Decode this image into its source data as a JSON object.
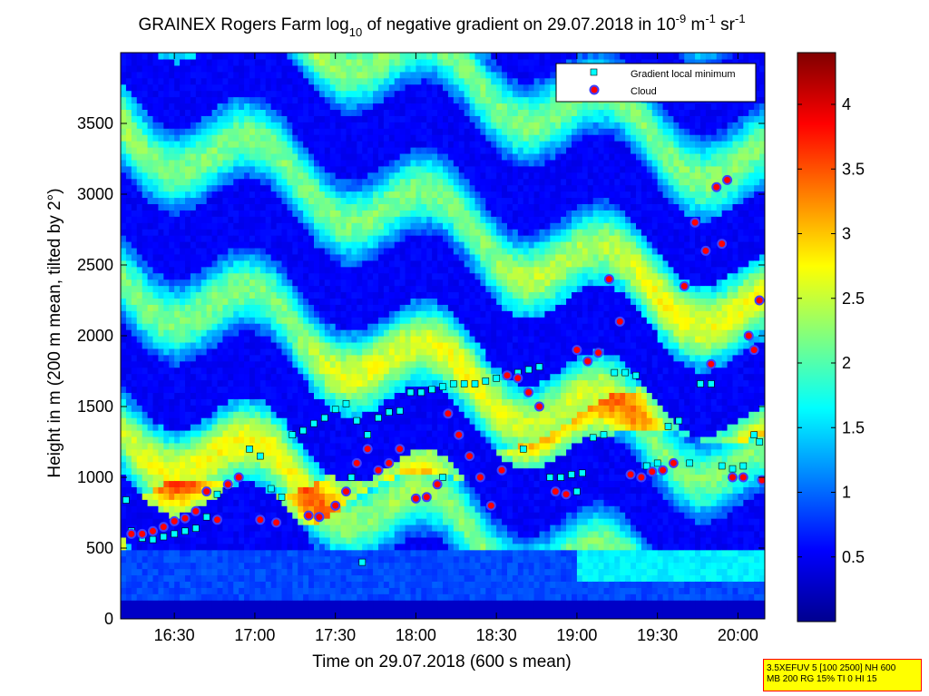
{
  "figure": {
    "title": {
      "main": "GRAINEX Rogers Farm log",
      "sub": "10",
      "mid": " of negative gradient on 29.07.2018 in 10",
      "exp1": "-9",
      "unit1": " m",
      "exp2": "-1",
      "unit2": " sr",
      "exp3": "-1"
    },
    "xlabel": "Time on 29.07.2018 (600 s mean)",
    "ylabel": "Height in m (200 m mean, tilted by 2°)",
    "legend": {
      "min_label": "Gradient local minimum",
      "cloud_label": "Cloud"
    },
    "info": {
      "line1": "3.5XEFUV 5 [100 2500] NH 600",
      "line2": "MB 200 RG 15% TI 0 HI 15"
    }
  },
  "chart_data": {
    "type": "heatmap",
    "x_axis": {
      "label": "Time on 29.07.2018 (600 s mean)",
      "range": [
        "16:10",
        "20:10"
      ],
      "ticks": [
        "16:30",
        "17:00",
        "17:30",
        "18:00",
        "18:30",
        "19:00",
        "19:30",
        "20:00"
      ]
    },
    "y_axis": {
      "label": "Height in m (200 m mean, tilted by 2°)",
      "range": [
        0,
        4000
      ],
      "ticks": [
        0,
        500,
        1000,
        1500,
        2000,
        2500,
        3000,
        3500
      ]
    },
    "colorbar": {
      "colormap": "jet",
      "range": [
        0,
        4.4
      ],
      "ticks": [
        0.5,
        1,
        1.5,
        2,
        2.5,
        3,
        3.5,
        4
      ]
    },
    "legend_placement": "top-right",
    "series": [
      {
        "name": "Gradient local minimum",
        "marker": "square",
        "color": "#00ffff",
        "points": [
          [
            "16:12",
            840
          ],
          [
            "16:14",
            620
          ],
          [
            "16:18",
            570
          ],
          [
            "16:22",
            560
          ],
          [
            "16:26",
            580
          ],
          [
            "16:30",
            600
          ],
          [
            "16:34",
            620
          ],
          [
            "16:38",
            640
          ],
          [
            "16:42",
            720
          ],
          [
            "16:46",
            880
          ],
          [
            "16:50",
            940
          ],
          [
            "16:54",
            1000
          ],
          [
            "16:58",
            1200
          ],
          [
            "17:02",
            1150
          ],
          [
            "17:06",
            920
          ],
          [
            "17:10",
            860
          ],
          [
            "17:14",
            1300
          ],
          [
            "17:18",
            1330
          ],
          [
            "17:22",
            1380
          ],
          [
            "17:26",
            1420
          ],
          [
            "17:30",
            1480
          ],
          [
            "17:34",
            1520
          ],
          [
            "17:38",
            1400
          ],
          [
            "17:42",
            1300
          ],
          [
            "17:46",
            1420
          ],
          [
            "17:50",
            1460
          ],
          [
            "17:54",
            1470
          ],
          [
            "17:58",
            1600
          ],
          [
            "18:02",
            1600
          ],
          [
            "18:06",
            1620
          ],
          [
            "18:10",
            1640
          ],
          [
            "18:14",
            1660
          ],
          [
            "18:18",
            1660
          ],
          [
            "18:22",
            1660
          ],
          [
            "18:26",
            1680
          ],
          [
            "18:30",
            1700
          ],
          [
            "18:34",
            1720
          ],
          [
            "18:38",
            1740
          ],
          [
            "18:42",
            1760
          ],
          [
            "18:46",
            1780
          ],
          [
            "18:50",
            1000
          ],
          [
            "18:54",
            1000
          ],
          [
            "18:58",
            1020
          ],
          [
            "19:02",
            1030
          ],
          [
            "19:06",
            1280
          ],
          [
            "19:10",
            1300
          ],
          [
            "19:14",
            1740
          ],
          [
            "19:18",
            1740
          ],
          [
            "19:22",
            1720
          ],
          [
            "19:26",
            1080
          ],
          [
            "19:30",
            1100
          ],
          [
            "19:34",
            1360
          ],
          [
            "19:38",
            1400
          ],
          [
            "19:42",
            1100
          ],
          [
            "19:46",
            1660
          ],
          [
            "19:50",
            1660
          ],
          [
            "19:54",
            1080
          ],
          [
            "19:58",
            1060
          ],
          [
            "20:02",
            1080
          ],
          [
            "20:06",
            1300
          ],
          [
            "20:08",
            1250
          ],
          [
            "17:40",
            400
          ],
          [
            "17:36",
            1000
          ],
          [
            "18:10",
            1000
          ],
          [
            "18:40",
            1200
          ],
          [
            "19:00",
            900
          ]
        ]
      },
      {
        "name": "Cloud",
        "marker": "circle",
        "color": "#ff0000",
        "points": [
          [
            "16:14",
            600
          ],
          [
            "16:18",
            600
          ],
          [
            "16:22",
            620
          ],
          [
            "16:26",
            650
          ],
          [
            "16:30",
            690
          ],
          [
            "16:34",
            710
          ],
          [
            "16:38",
            760
          ],
          [
            "16:42",
            900
          ],
          [
            "16:46",
            700
          ],
          [
            "16:50",
            950
          ],
          [
            "16:54",
            1000
          ],
          [
            "17:02",
            700
          ],
          [
            "17:08",
            680
          ],
          [
            "17:20",
            730
          ],
          [
            "17:24",
            720
          ],
          [
            "17:30",
            800
          ],
          [
            "17:34",
            900
          ],
          [
            "17:38",
            1100
          ],
          [
            "17:42",
            1200
          ],
          [
            "17:46",
            1050
          ],
          [
            "17:50",
            1100
          ],
          [
            "17:54",
            1200
          ],
          [
            "18:00",
            850
          ],
          [
            "18:04",
            860
          ],
          [
            "18:08",
            950
          ],
          [
            "18:12",
            1450
          ],
          [
            "18:16",
            1300
          ],
          [
            "18:20",
            1150
          ],
          [
            "18:24",
            1000
          ],
          [
            "18:28",
            800
          ],
          [
            "18:32",
            1050
          ],
          [
            "18:34",
            1720
          ],
          [
            "18:38",
            1700
          ],
          [
            "18:42",
            1600
          ],
          [
            "18:46",
            1500
          ],
          [
            "18:52",
            900
          ],
          [
            "18:56",
            880
          ],
          [
            "19:00",
            1900
          ],
          [
            "19:04",
            1820
          ],
          [
            "19:08",
            1880
          ],
          [
            "19:12",
            2400
          ],
          [
            "19:16",
            2100
          ],
          [
            "19:20",
            1020
          ],
          [
            "19:24",
            1000
          ],
          [
            "19:28",
            1040
          ],
          [
            "19:32",
            1050
          ],
          [
            "19:36",
            1100
          ],
          [
            "19:40",
            2350
          ],
          [
            "19:44",
            2800
          ],
          [
            "19:48",
            2600
          ],
          [
            "19:50",
            1800
          ],
          [
            "19:52",
            3050
          ],
          [
            "19:54",
            2650
          ],
          [
            "19:56",
            3100
          ],
          [
            "19:58",
            1000
          ],
          [
            "20:02",
            1000
          ],
          [
            "20:04",
            2000
          ],
          [
            "20:06",
            1900
          ],
          [
            "20:08",
            2250
          ],
          [
            "20:09",
            980
          ]
        ]
      }
    ]
  }
}
